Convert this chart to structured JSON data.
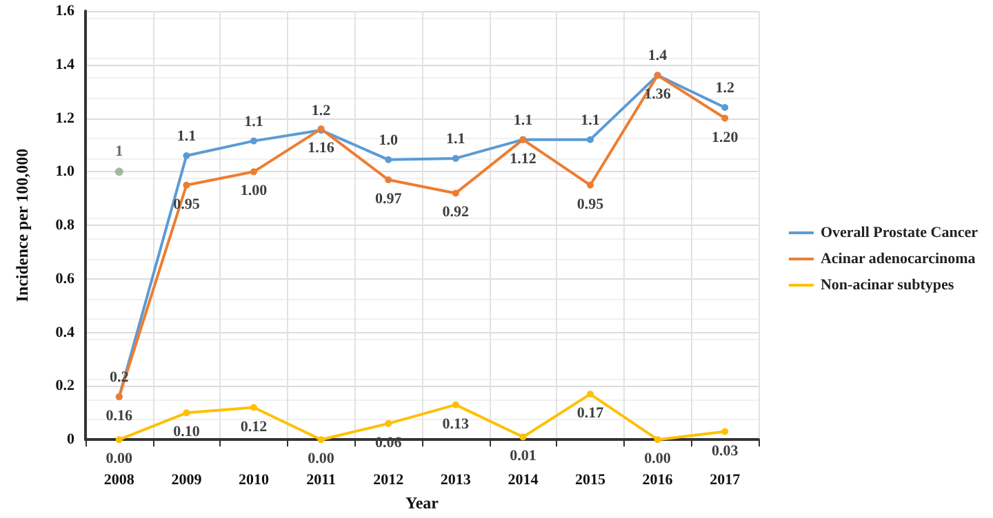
{
  "chart_data": {
    "type": "line",
    "xlabel": "Year",
    "ylabel": "Incidence per 100,000",
    "categories": [
      "2008",
      "2009",
      "2010",
      "2011",
      "2012",
      "2013",
      "2014",
      "2015",
      "2016",
      "2017"
    ],
    "series": [
      {
        "name": "Overall Prostate Cancer",
        "color": "#5b9bd5",
        "values": [
          0.16,
          1.06,
          1.115,
          1.155,
          1.045,
          1.05,
          1.12,
          1.12,
          1.36,
          1.24
        ],
        "value_labels": [
          "0.2",
          "1.1",
          "1.1",
          "1.2",
          "1.0",
          "1.1",
          "1.1",
          "1.1",
          "1.4",
          "1.2"
        ]
      },
      {
        "name": "Acinar adenocarcinoma",
        "color": "#ed7d31",
        "values": [
          0.16,
          0.95,
          1.0,
          1.16,
          0.97,
          0.92,
          1.12,
          0.95,
          1.36,
          1.2
        ],
        "value_labels": [
          "0.16",
          "0.95",
          "1.00",
          "1.16",
          "0.97",
          "0.92",
          "1.12",
          "0.95",
          "1.36",
          "1.20"
        ]
      },
      {
        "name": "Non-acinar subtypes",
        "color": "#ffc000",
        "values": [
          0,
          0.1,
          0.12,
          0,
          0.06,
          0.13,
          0.01,
          0.17,
          0,
          0.03
        ],
        "value_labels": [
          "0.00",
          "0.10",
          "0.12",
          "0.00",
          "0.06",
          "0.13",
          "0.01",
          "0.17",
          "0.00",
          "0.03"
        ]
      },
      {
        "type": "scatter",
        "color": "#8fa889",
        "values": [
          1,
          null,
          null,
          null,
          null,
          null,
          null,
          null,
          null,
          null
        ],
        "value_labels": [
          "1",
          null,
          null,
          null,
          null,
          null,
          null,
          null,
          null,
          null
        ]
      }
    ],
    "ylim": [
      0,
      1.6
    ],
    "yticks": [
      0,
      {
        "value": 0.2,
        "label": "0.2"
      },
      {
        "value": 0.4,
        "label": "0.4"
      },
      {
        "value": 0.6,
        "label": "0.6"
      },
      {
        "value": 0.8,
        "label": "0.8"
      },
      {
        "value": 1.0,
        "label": "1.0"
      },
      {
        "value": 1.2,
        "label": "1.2"
      },
      {
        "value": 1.4,
        "label": "1.4"
      },
      {
        "value": 1.6,
        "label": "1.6"
      }
    ],
    "grid": true,
    "legend": "right",
    "marker": "circle",
    "line_style": "solid"
  }
}
